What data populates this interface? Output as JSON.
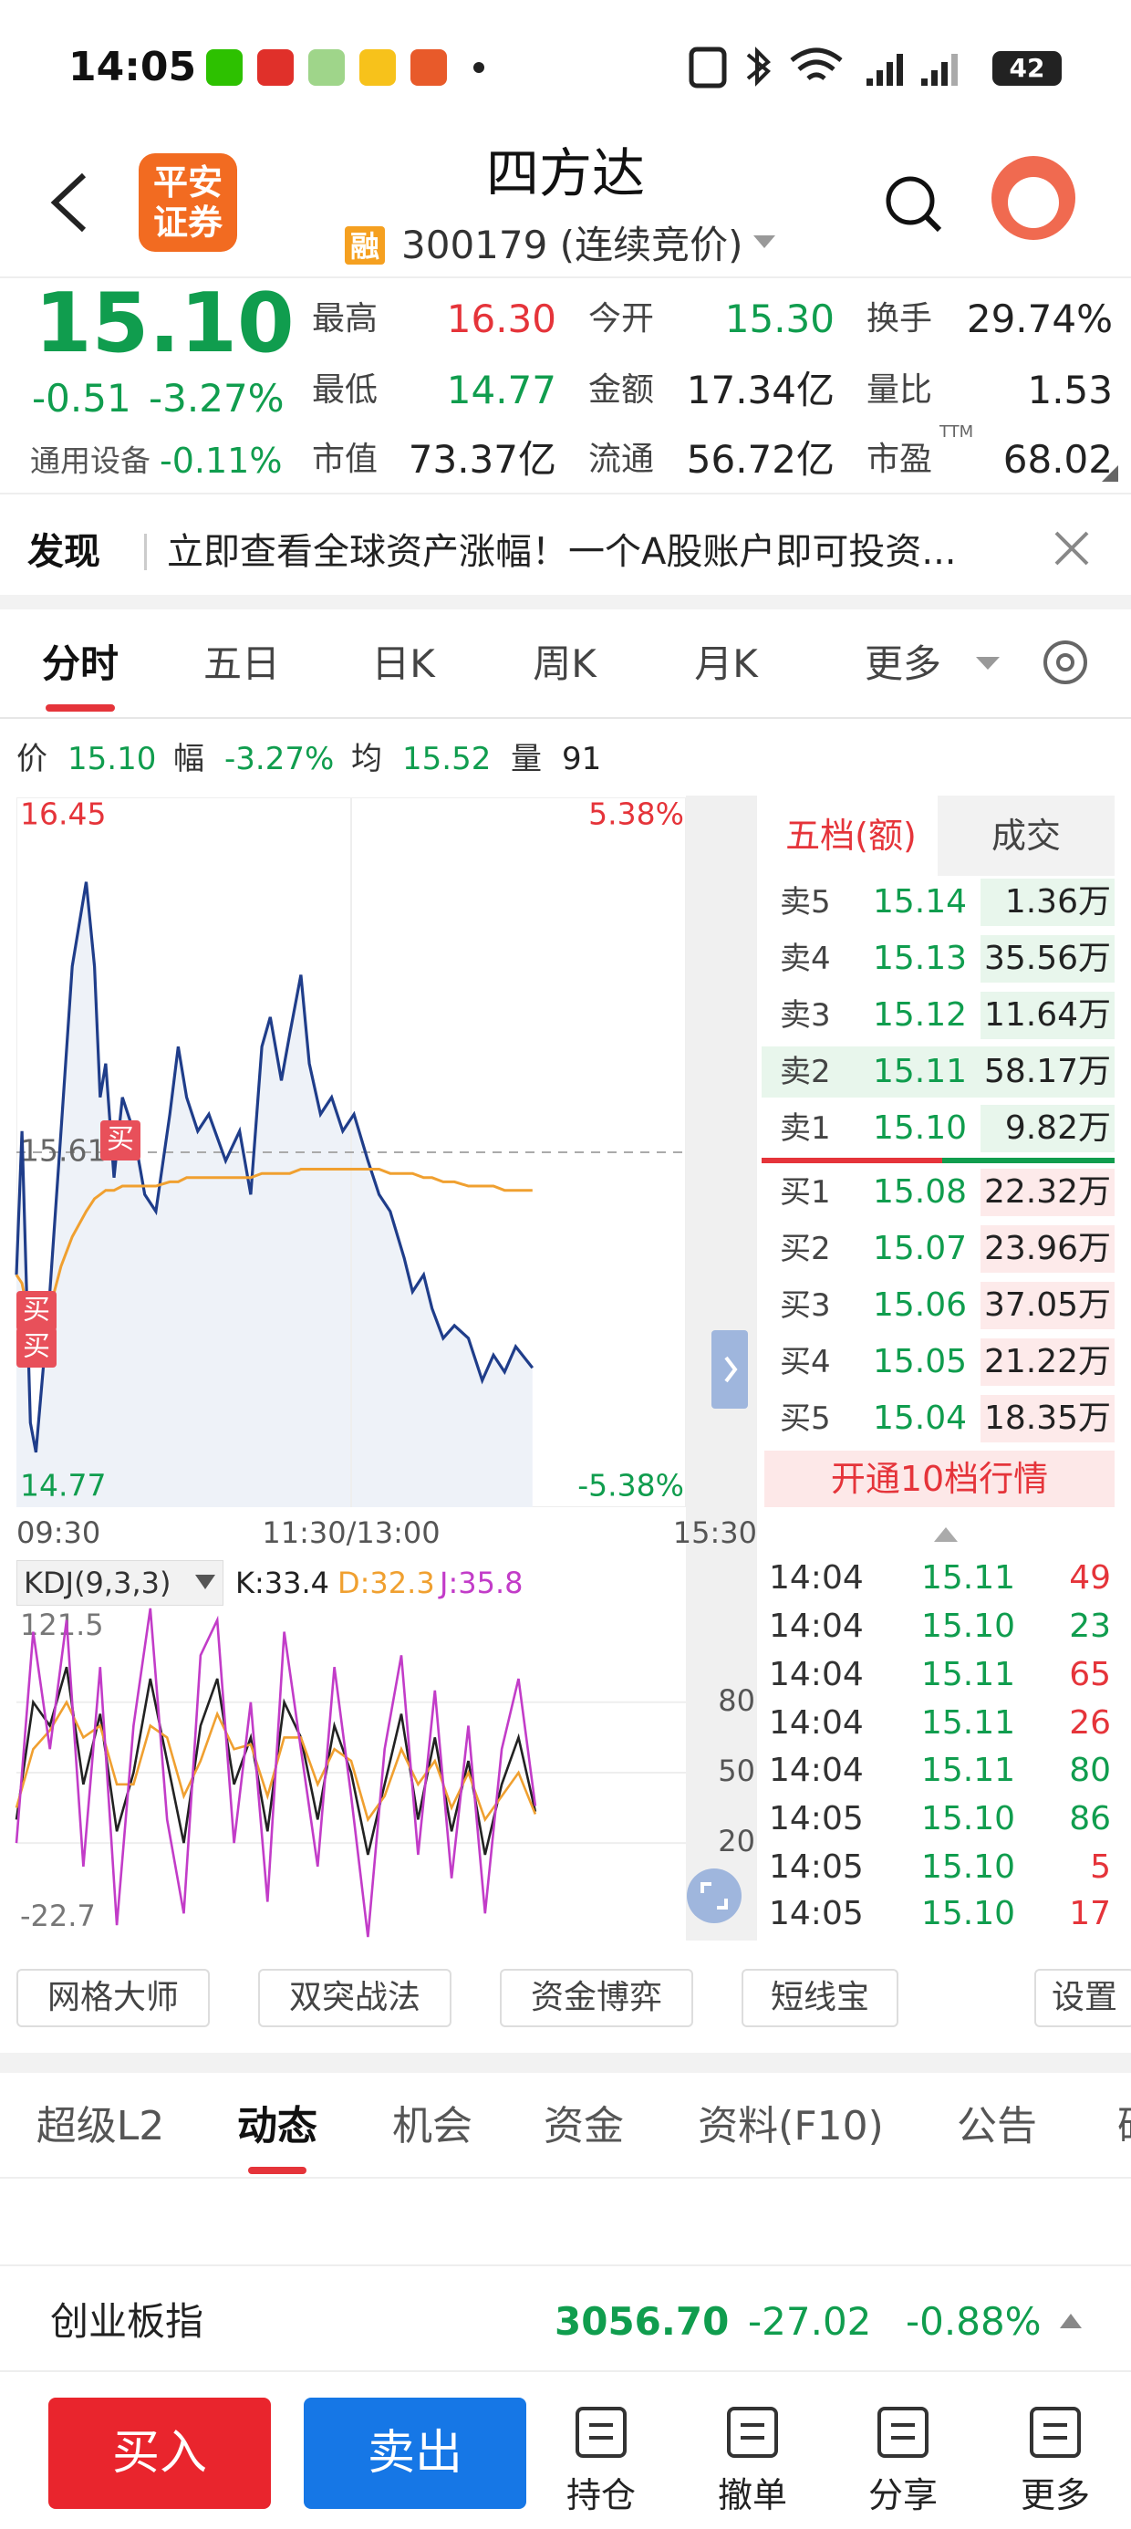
{
  "status": {
    "time": "14:05",
    "battery": "42"
  },
  "header": {
    "logo": [
      "平安",
      "证券"
    ],
    "title": "四方达",
    "badge": "融",
    "code": "300179 (连续竞价)"
  },
  "quote": {
    "price": "15.10",
    "change": "-0.51",
    "change_pct": "-3.27%",
    "sector": "通用设备",
    "sector_change": "-0.11%",
    "fields": [
      {
        "label": "最高",
        "value": "16.30",
        "color": "#e5343a"
      },
      {
        "label": "今开",
        "value": "15.30",
        "color": "#109d4e"
      },
      {
        "label": "换手",
        "value": "29.74%",
        "color": "#222222"
      },
      {
        "label": "最低",
        "value": "14.77",
        "color": "#109d4e"
      },
      {
        "label": "金额",
        "value": "17.34亿",
        "color": "#222222"
      },
      {
        "label": "量比",
        "value": "1.53",
        "color": "#222222"
      },
      {
        "label": "市值",
        "value": "73.37亿",
        "color": "#222222"
      },
      {
        "label": "流通",
        "value": "56.72亿",
        "color": "#222222"
      },
      {
        "label": "市盈",
        "sup": "TTM",
        "value": "68.02",
        "color": "#222222"
      }
    ]
  },
  "discover": {
    "label": "发现",
    "text": "立即查看全球资产涨幅！一个A股账户即可投资..."
  },
  "tabs": [
    "分时",
    "五日",
    "日K",
    "周K",
    "月K",
    "更多"
  ],
  "info": [
    {
      "label": "价",
      "value": "15.10",
      "color": "#109d4e"
    },
    {
      "label": "幅",
      "value": "-3.27%",
      "color": "#109d4e"
    },
    {
      "label": "均",
      "value": "15.52",
      "color": "#109d4e"
    },
    {
      "label": "量",
      "value": "91",
      "color": "#222222"
    }
  ],
  "chart_data": [
    {
      "type": "line",
      "x": [
        0,
        2,
        5,
        7,
        12,
        16,
        20,
        25,
        28,
        30,
        32,
        35,
        38,
        42,
        46,
        50,
        55,
        58,
        61,
        65,
        69,
        75,
        80,
        84,
        88,
        91,
        95,
        98,
        102,
        105,
        109,
        113,
        117,
        121,
        126,
        130,
        134,
        139,
        142,
        146,
        149,
        153,
        157,
        162,
        167,
        171,
        175,
        179,
        185
      ],
      "series": [
        {
          "color": "#1f3d8a",
          "values": [
            15.32,
            15.66,
            14.97,
            14.9,
            15.28,
            15.66,
            16.05,
            16.25,
            16.05,
            15.74,
            15.82,
            15.55,
            15.74,
            15.66,
            15.51,
            15.47,
            15.7,
            15.86,
            15.74,
            15.66,
            15.7,
            15.59,
            15.66,
            15.51,
            15.86,
            15.93,
            15.78,
            15.89,
            16.03,
            15.82,
            15.7,
            15.74,
            15.66,
            15.7,
            15.59,
            15.51,
            15.47,
            15.36,
            15.28,
            15.32,
            15.24,
            15.17,
            15.2,
            15.17,
            15.07,
            15.13,
            15.09,
            15.15,
            15.1
          ]
        },
        {
          "color": "#f0a030",
          "values": [
            15.32,
            15.3,
            15.2,
            15.16,
            15.24,
            15.34,
            15.41,
            15.47,
            15.5,
            15.51,
            15.52,
            15.52,
            15.53,
            15.53,
            15.53,
            15.53,
            15.54,
            15.54,
            15.55,
            15.55,
            15.55,
            15.55,
            15.55,
            15.55,
            15.56,
            15.56,
            15.56,
            15.56,
            15.57,
            15.57,
            15.57,
            15.57,
            15.57,
            15.57,
            15.57,
            15.57,
            15.56,
            15.56,
            15.56,
            15.55,
            15.55,
            15.54,
            15.54,
            15.53,
            15.53,
            15.53,
            15.52,
            15.52,
            15.52
          ]
        }
      ],
      "xlim": [
        0,
        240
      ],
      "xticks": [
        {
          "value": 0,
          "label": "09:30"
        },
        {
          "value": 120,
          "label": "11:30/13:00"
        },
        {
          "value": 240,
          "label": "15:30"
        }
      ],
      "ylim": [
        14.77,
        16.45
      ],
      "yticks": [
        14.77,
        15.61,
        16.45
      ],
      "y2lim": [
        -5.38,
        5.38
      ],
      "y2ticks": [
        {
          "value": -5.38,
          "label": "-5.38%"
        },
        {
          "value": 5.38,
          "label": "5.38%"
        }
      ],
      "annotations": [
        "买",
        "买",
        "买"
      ]
    },
    {
      "type": "line",
      "title": "KDJ(9,3,3)",
      "x": [
        0,
        6,
        12,
        18,
        24,
        30,
        36,
        42,
        48,
        54,
        60,
        66,
        72,
        78,
        84,
        90,
        96,
        102,
        108,
        114,
        120,
        126,
        132,
        138,
        144,
        150,
        156,
        162,
        168,
        174,
        180,
        186
      ],
      "series": [
        {
          "name": "K:33.4",
          "color": "#222222",
          "values": [
            30,
            80,
            70,
            95,
            45,
            75,
            25,
            50,
            90,
            55,
            20,
            70,
            90,
            45,
            65,
            25,
            80,
            65,
            30,
            70,
            50,
            15,
            45,
            75,
            30,
            65,
            25,
            55,
            15,
            45,
            65,
            33.4
          ]
        },
        {
          "name": "D:32.3",
          "color": "#f0a030",
          "values": [
            35,
            60,
            68,
            80,
            65,
            70,
            45,
            45,
            70,
            65,
            40,
            55,
            75,
            60,
            62,
            40,
            65,
            65,
            45,
            60,
            55,
            30,
            40,
            60,
            45,
            55,
            35,
            50,
            30,
            40,
            50,
            32.3
          ]
        },
        {
          "name": "J:35.8",
          "color": "#c23cc8",
          "values": [
            20,
            110,
            60,
            115,
            10,
            95,
            -15,
            70,
            120,
            30,
            -10,
            100,
            115,
            20,
            80,
            -5,
            110,
            60,
            10,
            95,
            40,
            -20,
            60,
            100,
            15,
            85,
            5,
            70,
            -10,
            60,
            90,
            35.8
          ]
        }
      ],
      "xlim": [
        0,
        240
      ],
      "ylim": [
        -22.7,
        121.5
      ],
      "yticks": [
        -22.7,
        20,
        50,
        80,
        121.5
      ]
    }
  ],
  "order_book": {
    "headers": [
      "五档(额)",
      "成交"
    ],
    "asks": [
      {
        "label": "卖5",
        "price": "15.14",
        "amount": "1.36万"
      },
      {
        "label": "卖4",
        "price": "15.13",
        "amount": "35.56万"
      },
      {
        "label": "卖3",
        "price": "15.12",
        "amount": "11.64万"
      },
      {
        "label": "卖2",
        "price": "15.11",
        "amount": "58.17万"
      },
      {
        "label": "卖1",
        "price": "15.10",
        "amount": "9.82万"
      }
    ],
    "bids": [
      {
        "label": "买1",
        "price": "15.08",
        "amount": "22.32万"
      },
      {
        "label": "买2",
        "price": "15.07",
        "amount": "23.96万"
      },
      {
        "label": "买3",
        "price": "15.06",
        "amount": "37.05万"
      },
      {
        "label": "买4",
        "price": "15.05",
        "amount": "21.22万"
      },
      {
        "label": "买5",
        "price": "15.04",
        "amount": "18.35万"
      }
    ],
    "upgrade": "开通10档行情"
  },
  "trades": [
    {
      "time": "14:04",
      "price": "15.11",
      "volume": "49",
      "color": "#e5343a"
    },
    {
      "time": "14:04",
      "price": "15.10",
      "volume": "23",
      "color": "#109d4e"
    },
    {
      "time": "14:04",
      "price": "15.11",
      "volume": "65",
      "color": "#e5343a"
    },
    {
      "time": "14:04",
      "price": "15.11",
      "volume": "26",
      "color": "#e5343a"
    },
    {
      "time": "14:04",
      "price": "15.11",
      "volume": "80",
      "color": "#109d4e"
    },
    {
      "time": "14:05",
      "price": "15.10",
      "volume": "86",
      "color": "#109d4e"
    },
    {
      "time": "14:05",
      "price": "15.10",
      "volume": "5",
      "color": "#e5343a"
    },
    {
      "time": "14:05",
      "price": "15.10",
      "volume": "17",
      "color": "#e5343a"
    }
  ],
  "tools": [
    "网格大师",
    "双突战法",
    "资金博弈",
    "短线宝",
    "设置"
  ],
  "detail_tabs": [
    "超级L2",
    "动态",
    "机会",
    "资金",
    "资料(F10)",
    "公告",
    "研"
  ],
  "index": {
    "name": "创业板指",
    "value": "3056.70",
    "change": "-27.02",
    "change_pct": "-0.88%"
  },
  "nav": {
    "buy": "买入",
    "sell": "卖出",
    "items": [
      "持仓",
      "撤单",
      "分享",
      "更多"
    ]
  }
}
